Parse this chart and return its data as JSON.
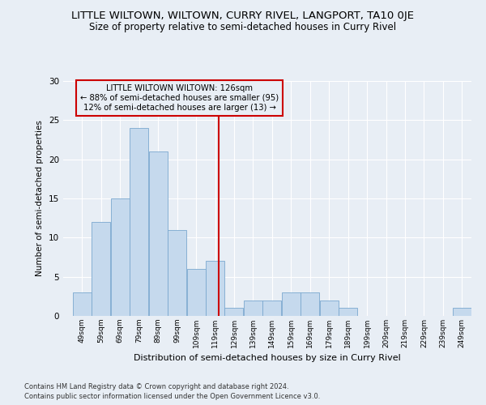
{
  "title": "LITTLE WILTOWN, WILTOWN, CURRY RIVEL, LANGPORT, TA10 0JE",
  "subtitle": "Size of property relative to semi-detached houses in Curry Rivel",
  "xlabel": "Distribution of semi-detached houses by size in Curry Rivel",
  "ylabel": "Number of semi-detached properties",
  "footer1": "Contains HM Land Registry data © Crown copyright and database right 2024.",
  "footer2": "Contains public sector information licensed under the Open Government Licence v3.0.",
  "bar_color": "#c5d9ed",
  "bar_edge_color": "#7aa8cf",
  "annotation_box_color": "#cc0000",
  "vline_color": "#cc0000",
  "annotation_title": "LITTLE WILTOWN WILTOWN: 126sqm",
  "annotation_line1": "← 88% of semi-detached houses are smaller (95)",
  "annotation_line2": "12% of semi-detached houses are larger (13) →",
  "bins": [
    49,
    59,
    69,
    79,
    89,
    99,
    109,
    119,
    129,
    139,
    149,
    159,
    169,
    179,
    189,
    199,
    209,
    219,
    229,
    239,
    249
  ],
  "values": [
    3,
    12,
    15,
    24,
    21,
    11,
    6,
    7,
    1,
    2,
    2,
    3,
    3,
    2,
    1,
    0,
    0,
    0,
    0,
    0,
    1
  ],
  "tick_labels": [
    "49sqm",
    "59sqm",
    "69sqm",
    "79sqm",
    "89sqm",
    "99sqm",
    "109sqm",
    "119sqm",
    "129sqm",
    "139sqm",
    "149sqm",
    "159sqm",
    "169sqm",
    "179sqm",
    "189sqm",
    "199sqm",
    "209sqm",
    "219sqm",
    "229sqm",
    "239sqm",
    "249sqm"
  ],
  "vline_x": 126,
  "ylim": [
    0,
    30
  ],
  "yticks": [
    0,
    5,
    10,
    15,
    20,
    25,
    30
  ],
  "background_color": "#e8eef5",
  "grid_color": "#ffffff",
  "title_fontsize": 9.5,
  "subtitle_fontsize": 8.5
}
